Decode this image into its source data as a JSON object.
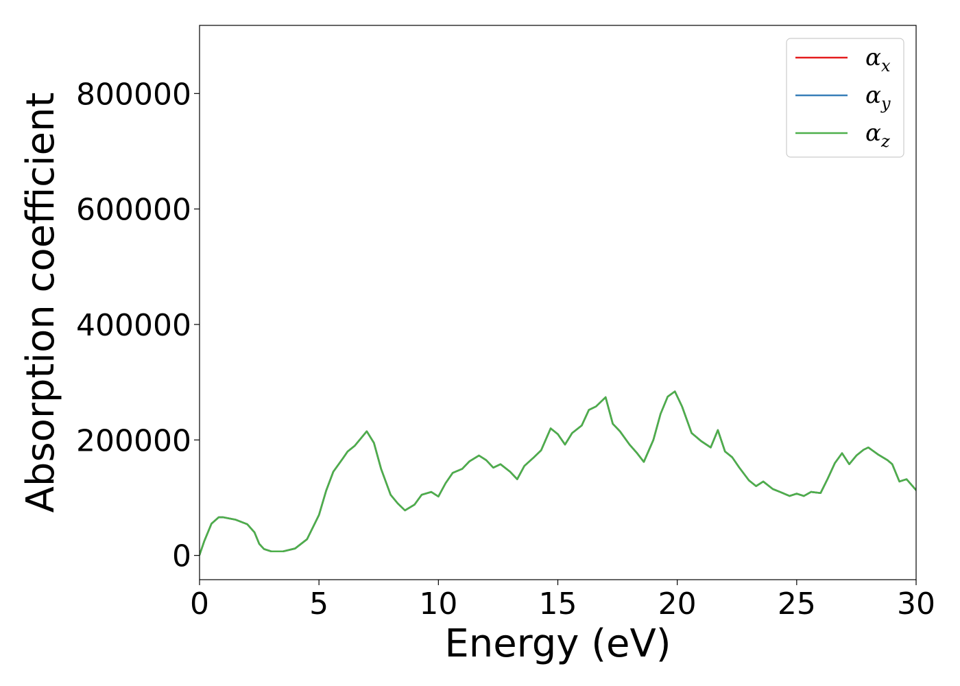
{
  "chart_data": {
    "type": "line",
    "xlabel": "Energy (eV)",
    "ylabel": "Absorption coefficient",
    "xlim": [
      0,
      30
    ],
    "ylim": [
      -42000,
      918000
    ],
    "xticks": [
      0,
      5,
      10,
      15,
      20,
      25,
      30
    ],
    "yticks": [
      0,
      200000,
      400000,
      600000,
      800000
    ],
    "grid": false,
    "legend_position": "top-right",
    "x": [
      0.0,
      0.2,
      0.5,
      0.8,
      1.0,
      1.5,
      2.0,
      2.3,
      2.5,
      2.7,
      3.0,
      3.5,
      4.0,
      4.5,
      5.0,
      5.3,
      5.6,
      6.0,
      6.2,
      6.5,
      7.0,
      7.3,
      7.6,
      8.0,
      8.3,
      8.6,
      9.0,
      9.3,
      9.7,
      10.0,
      10.3,
      10.6,
      11.0,
      11.3,
      11.7,
      12.0,
      12.3,
      12.6,
      13.0,
      13.3,
      13.6,
      14.0,
      14.3,
      14.7,
      15.0,
      15.3,
      15.6,
      16.0,
      16.3,
      16.6,
      17.0,
      17.3,
      17.6,
      18.0,
      18.3,
      18.6,
      19.0,
      19.3,
      19.6,
      19.9,
      20.2,
      20.6,
      21.0,
      21.4,
      21.7,
      22.0,
      22.3,
      22.6,
      23.0,
      23.3,
      23.6,
      24.0,
      24.3,
      24.7,
      25.0,
      25.3,
      25.6,
      26.0,
      26.3,
      26.6,
      26.9,
      27.2,
      27.5,
      27.8,
      28.0,
      28.4,
      28.8,
      29.0,
      29.3,
      29.6,
      30.0
    ],
    "series": [
      {
        "name": "αx",
        "color": "#e41a1c",
        "values": [
          1000,
          25000,
          55000,
          66000,
          66000,
          62000,
          54000,
          40000,
          20000,
          11000,
          7000,
          7000,
          12000,
          28000,
          70000,
          112000,
          145000,
          168000,
          180000,
          190000,
          215000,
          195000,
          150000,
          105000,
          90000,
          78000,
          88000,
          105000,
          110000,
          102000,
          125000,
          143000,
          150000,
          163000,
          173000,
          165000,
          152000,
          158000,
          145000,
          132000,
          155000,
          170000,
          182000,
          220000,
          210000,
          192000,
          212000,
          225000,
          252000,
          258000,
          274000,
          228000,
          215000,
          192000,
          178000,
          162000,
          200000,
          245000,
          275000,
          284000,
          258000,
          212000,
          198000,
          187000,
          217000,
          180000,
          170000,
          152000,
          130000,
          120000,
          128000,
          115000,
          110000,
          103000,
          107000,
          103000,
          110000,
          108000,
          133000,
          160000,
          177000,
          158000,
          173000,
          183000,
          187000,
          175000,
          165000,
          158000,
          128000,
          132000,
          113000
        ]
      },
      {
        "name": "αy",
        "color": "#377eb8",
        "values": [
          1000,
          25000,
          55000,
          66000,
          66000,
          62000,
          54000,
          40000,
          20000,
          11000,
          7000,
          7000,
          12000,
          28000,
          70000,
          112000,
          145000,
          168000,
          180000,
          190000,
          215000,
          195000,
          150000,
          105000,
          90000,
          78000,
          88000,
          105000,
          110000,
          102000,
          125000,
          143000,
          150000,
          163000,
          173000,
          165000,
          152000,
          158000,
          145000,
          132000,
          155000,
          170000,
          182000,
          220000,
          210000,
          192000,
          212000,
          225000,
          252000,
          258000,
          274000,
          228000,
          215000,
          192000,
          178000,
          162000,
          200000,
          245000,
          275000,
          284000,
          258000,
          212000,
          198000,
          187000,
          217000,
          180000,
          170000,
          152000,
          130000,
          120000,
          128000,
          115000,
          110000,
          103000,
          107000,
          103000,
          110000,
          108000,
          133000,
          160000,
          177000,
          158000,
          173000,
          183000,
          187000,
          175000,
          165000,
          158000,
          128000,
          132000,
          113000
        ]
      },
      {
        "name": "αz",
        "color": "#4daf4a",
        "values": [
          1000,
          25000,
          55000,
          66000,
          66000,
          62000,
          54000,
          40000,
          20000,
          11000,
          7000,
          7000,
          12000,
          28000,
          70000,
          112000,
          145000,
          168000,
          180000,
          190000,
          215000,
          195000,
          150000,
          105000,
          90000,
          78000,
          88000,
          105000,
          110000,
          102000,
          125000,
          143000,
          150000,
          163000,
          173000,
          165000,
          152000,
          158000,
          145000,
          132000,
          155000,
          170000,
          182000,
          220000,
          210000,
          192000,
          212000,
          225000,
          252000,
          258000,
          274000,
          228000,
          215000,
          192000,
          178000,
          162000,
          200000,
          245000,
          275000,
          284000,
          258000,
          212000,
          198000,
          187000,
          217000,
          180000,
          170000,
          152000,
          130000,
          120000,
          128000,
          115000,
          110000,
          103000,
          107000,
          103000,
          110000,
          108000,
          133000,
          160000,
          177000,
          158000,
          173000,
          183000,
          187000,
          175000,
          165000,
          158000,
          128000,
          132000,
          113000
        ]
      }
    ],
    "legend": [
      {
        "symbol": "α",
        "sub": "x",
        "color": "#e41a1c"
      },
      {
        "symbol": "α",
        "sub": "y",
        "color": "#377eb8"
      },
      {
        "symbol": "α",
        "sub": "z",
        "color": "#4daf4a"
      }
    ]
  }
}
